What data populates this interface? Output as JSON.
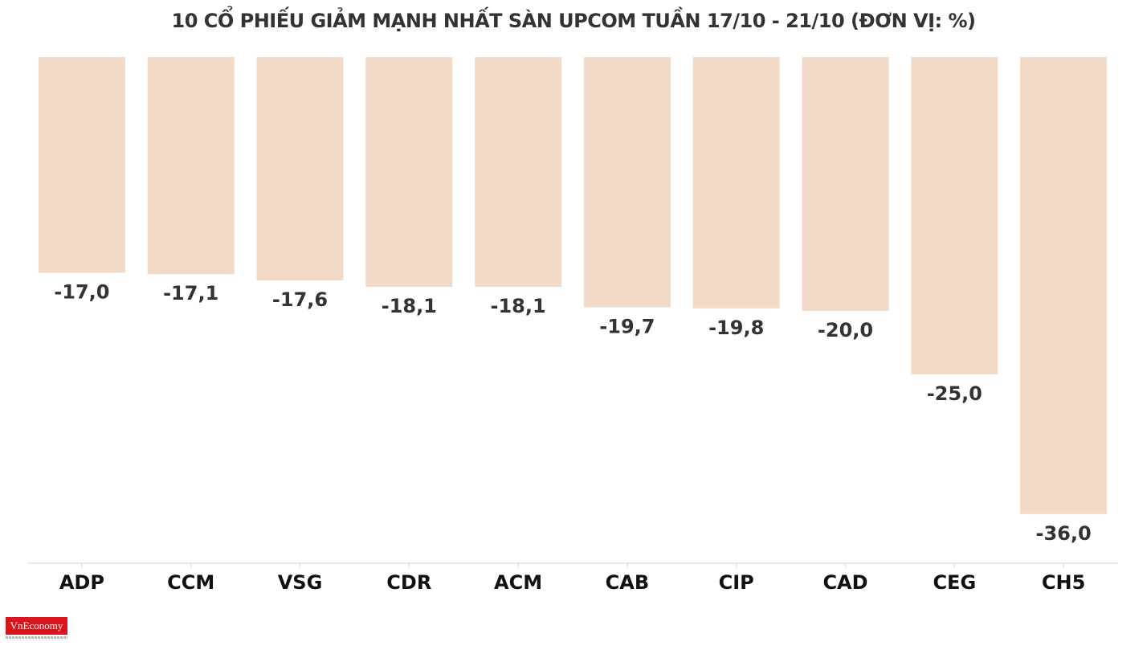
{
  "title": "10 CỔ PHIẾU GIẢM MẠNH NHẤT SÀN UPCOM TUẦN 17/10 - 21/10 (ĐƠN VỊ: %)",
  "logo": {
    "text": "VnEconomy"
  },
  "colors": {
    "bar": "#f2dac7",
    "label": "#333333",
    "axis": "#e2e2e2",
    "logo_bg": "#d9141c"
  },
  "chart_data": {
    "type": "bar",
    "title": "10 CỔ PHIẾU GIẢM MẠNH NHẤT SÀN UPCOM TUẦN 17/10 - 21/10 (ĐƠN VỊ: %)",
    "categories": [
      "ADP",
      "CCM",
      "VSG",
      "CDR",
      "ACM",
      "CAB",
      "CIP",
      "CAD",
      "CEG",
      "CH5"
    ],
    "values": [
      -17.0,
      -17.1,
      -17.6,
      -18.1,
      -18.1,
      -19.7,
      -19.8,
      -20.0,
      -25.0,
      -36.0
    ],
    "value_labels": [
      "-17,0",
      "-17,1",
      "-17,6",
      "-18,1",
      "-18,1",
      "-19,7",
      "-19,8",
      "-20,0",
      "-25,0",
      "-36,0"
    ],
    "xlabel": "",
    "ylabel": "",
    "ylim": [
      -36,
      0
    ],
    "grid": false,
    "legend": "none"
  }
}
